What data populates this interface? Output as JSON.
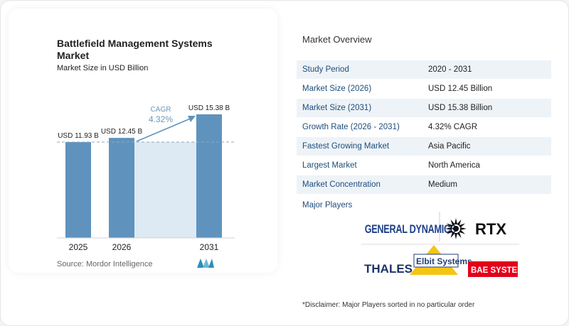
{
  "chart_data": {
    "type": "bar",
    "title": "Battlefield Management Systems Market",
    "subtitle": "Market Size in USD Billion",
    "categories": [
      "2025",
      "2026",
      "2031"
    ],
    "values": [
      11.93,
      12.45,
      15.38
    ],
    "data_labels": [
      "USD 11.93 B",
      "USD 12.45 B",
      "USD 15.38 B"
    ],
    "cagr_label": "CAGR",
    "cagr_value": "4.32%",
    "bar_color": "#5f93bd",
    "highlight_color": "#dde9f3"
  },
  "source": "Source:  Mordor Intelligence",
  "overview": {
    "title": "Market Overview",
    "rows": [
      {
        "label": "Study Period",
        "value": "2020 - 2031"
      },
      {
        "label": "Market Size (2026)",
        "value": "USD 12.45 Billion"
      },
      {
        "label": "Market Size (2031)",
        "value": "USD 15.38 Billion"
      },
      {
        "label": "Growth Rate (2026 - 2031)",
        "value": "4.32% CAGR"
      },
      {
        "label": "Fastest Growing Market",
        "value": "Asia Pacific"
      },
      {
        "label": "Largest Market",
        "value": "North America"
      },
      {
        "label": "Market Concentration",
        "value": "Medium"
      }
    ]
  },
  "players": {
    "title": "Major Players",
    "logos": [
      "GENERAL DYNAMICS",
      "RTX",
      "THALES",
      "Elbit Systems",
      "BAE SYSTEMS"
    ]
  },
  "disclaimer": "*Disclaimer: Major Players sorted in no particular order"
}
